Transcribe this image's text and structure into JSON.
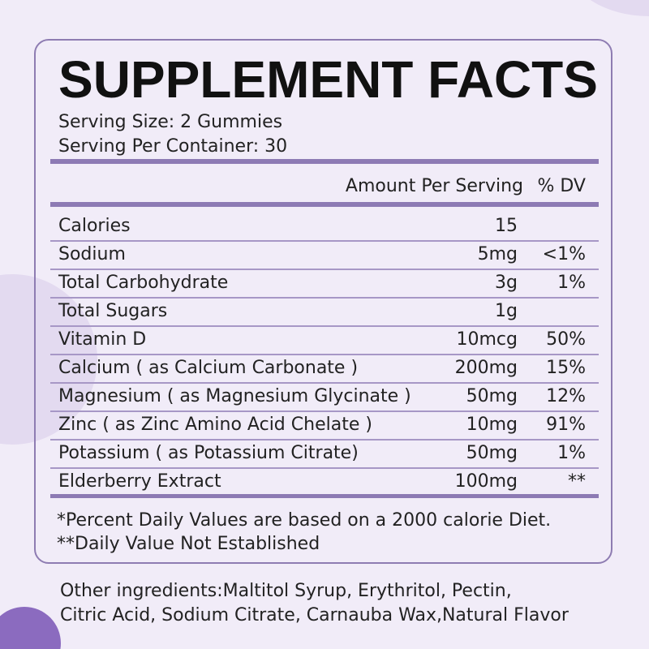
{
  "header": {
    "title": "SUPPLEMENT FACTS",
    "serving_size": "Serving Size: 2 Gummies",
    "servings_per_container": "Serving Per Container: 30"
  },
  "table": {
    "columns": [
      "Amount Per Serving",
      "% DV"
    ],
    "rows": [
      {
        "name": "Calories",
        "amount": "15"
      },
      {
        "name": "Sodium",
        "amount": "5mg",
        "dv": "<1%"
      },
      {
        "name": "Total Carbohydrate",
        "amount": "3g",
        "dv": "1%"
      },
      {
        "name": "Total Sugars",
        "amount": "1g"
      },
      {
        "name": "Vitamin D",
        "amount": "10mcg",
        "dv": "50%"
      },
      {
        "name": "Calcium ( as Calcium Carbonate )",
        "amount": "200mg",
        "dv": "15%"
      },
      {
        "name": "Magnesium ( as Magnesium Glycinate )",
        "amount": "50mg",
        "dv": "12%"
      },
      {
        "name": "Zinc ( as Zinc Amino Acid Chelate )",
        "amount": "10mg",
        "dv": "91%"
      },
      {
        "name": "Potassium ( as Potassium Citrate)",
        "amount": "50mg",
        "dv": "1%"
      },
      {
        "name": "Elderberry Extract",
        "amount": "100mg",
        "dv": "**"
      }
    ]
  },
  "footnotes": [
    "*Percent Daily Values are based on a 2000 calorie Diet.",
    "**Daily Value Not Established"
  ],
  "other_ingredients": [
    "Other ingredients:Maltitol Syrup, Erythritol, Pectin,",
    "Citric Acid, Sodium Citrate, Carnauba Wax,Natural Flavor"
  ]
}
